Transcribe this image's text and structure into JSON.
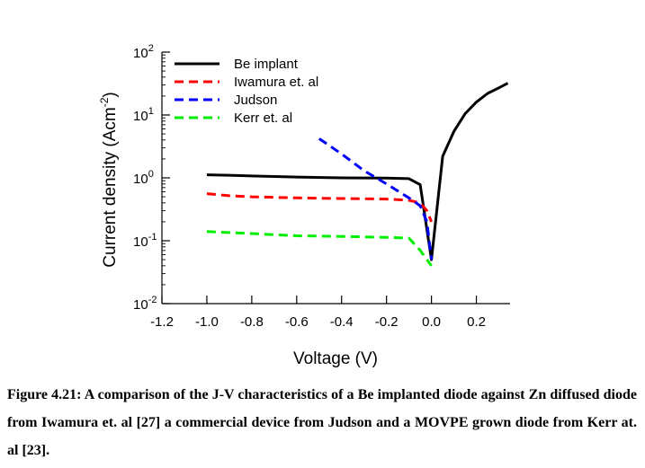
{
  "caption": "Figure 4.21: A comparison of the J-V characteristics of a Be implanted diode against Zn diffused diode from Iwamura et. al [27] a commercial device from Judson and a MOVPE grown diode from Kerr at. al [23].",
  "chart_data": {
    "type": "line",
    "title": "",
    "xlabel": "Voltage (V)",
    "ylabel_base": "Current density (Acm",
    "ylabel_sup": "-2",
    "ylabel_end": ")",
    "xlim": [
      -1.2,
      0.35
    ],
    "ylim_log10": [
      -2,
      2
    ],
    "yscale": "log",
    "x_ticks": [
      -1.2,
      -1.0,
      -0.8,
      -0.6,
      -0.4,
      -0.2,
      0.0,
      0.2
    ],
    "x_tick_labels": [
      "-1.2",
      "-1.0",
      "-0.8",
      "-0.6",
      "-0.4",
      "-0.2",
      "0.0",
      "0.2"
    ],
    "y_ticks": [
      {
        "exp": 2,
        "base": "10",
        "sup": "2"
      },
      {
        "exp": 1,
        "base": "10",
        "sup": "1"
      },
      {
        "exp": 0,
        "base": "10",
        "sup": "0"
      },
      {
        "exp": -1,
        "base": "10",
        "sup": "-1"
      },
      {
        "exp": -2,
        "base": "10",
        "sup": "-2"
      }
    ],
    "legend_position": "top-left",
    "series": [
      {
        "name": "Be implant",
        "color": "#000000",
        "dash": "solid",
        "points": [
          [
            -1.0,
            1.12
          ],
          [
            -0.9,
            1.1
          ],
          [
            -0.8,
            1.07
          ],
          [
            -0.6,
            1.03
          ],
          [
            -0.4,
            1.0
          ],
          [
            -0.2,
            0.99
          ],
          [
            -0.1,
            0.97
          ],
          [
            -0.05,
            0.78
          ],
          [
            0.0,
            0.05
          ],
          [
            0.05,
            2.2
          ],
          [
            0.1,
            5.5
          ],
          [
            0.15,
            10.5
          ],
          [
            0.2,
            16
          ],
          [
            0.25,
            22
          ],
          [
            0.3,
            27
          ],
          [
            0.34,
            32
          ]
        ]
      },
      {
        "name": "Iwamura et. al",
        "color": "#ff0000",
        "dash": "dashed",
        "points": [
          [
            -1.0,
            0.56
          ],
          [
            -0.9,
            0.52
          ],
          [
            -0.8,
            0.5
          ],
          [
            -0.6,
            0.48
          ],
          [
            -0.4,
            0.47
          ],
          [
            -0.2,
            0.46
          ],
          [
            -0.1,
            0.44
          ],
          [
            -0.05,
            0.4
          ],
          [
            -0.02,
            0.3
          ],
          [
            0.0,
            0.2
          ]
        ]
      },
      {
        "name": "Judson",
        "color": "#0000ff",
        "dash": "dashed",
        "points": [
          [
            -0.5,
            4.2
          ],
          [
            -0.4,
            2.4
          ],
          [
            -0.3,
            1.3
          ],
          [
            -0.2,
            0.8
          ],
          [
            -0.1,
            0.48
          ],
          [
            -0.05,
            0.36
          ],
          [
            -0.02,
            0.2
          ],
          [
            0.0,
            0.05
          ]
        ]
      },
      {
        "name": "Kerr et. al",
        "color": "#00ee00",
        "dash": "dashed",
        "points": [
          [
            -1.0,
            0.14
          ],
          [
            -0.8,
            0.13
          ],
          [
            -0.6,
            0.12
          ],
          [
            -0.4,
            0.117
          ],
          [
            -0.2,
            0.113
          ],
          [
            -0.1,
            0.11
          ],
          [
            -0.05,
            0.07
          ],
          [
            0.0,
            0.04
          ]
        ]
      }
    ]
  }
}
